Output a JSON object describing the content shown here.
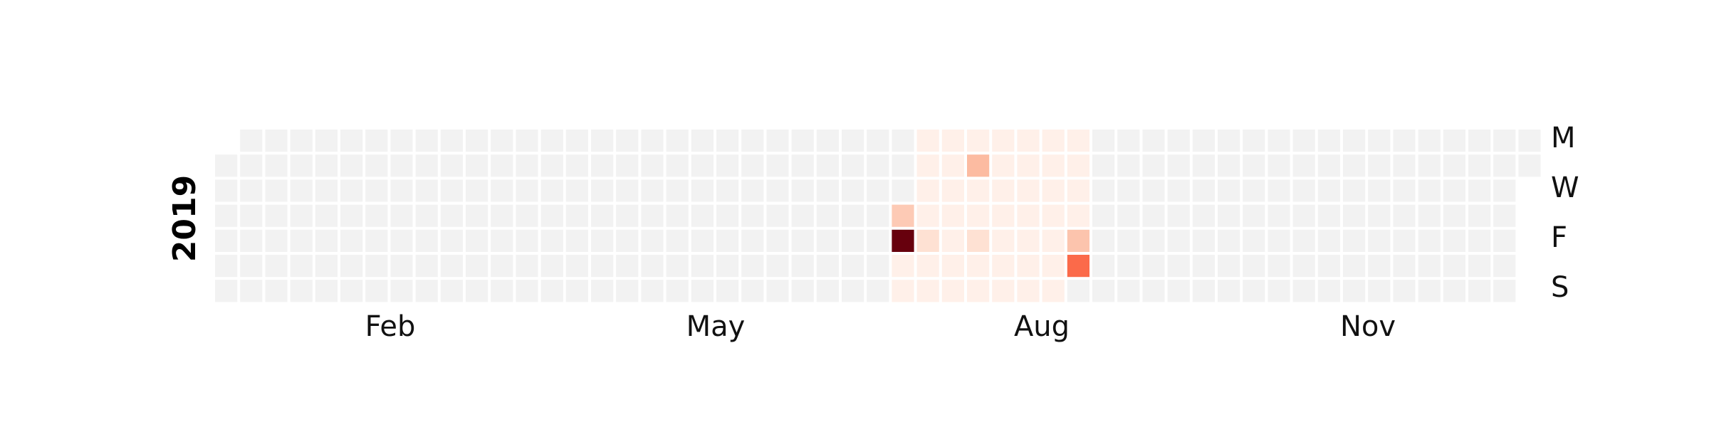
{
  "chart_data": {
    "type": "heatmap",
    "title": "",
    "year": "2019",
    "start_date": "2019-01-01",
    "end_date": "2019-12-31",
    "empty_color": "#f2f2f2",
    "colormap": [
      "#fff5f0",
      "#fee0d2",
      "#fcbba1",
      "#fc9272",
      "#fb6a4a",
      "#ef3b2c",
      "#cb181d",
      "#a50f15",
      "#67000d"
    ],
    "week_start": "Monday",
    "y_tick_labels": [
      "M",
      "W",
      "F",
      "S"
    ],
    "x_tick_labels": [
      "Feb",
      "May",
      "Aug",
      "Nov"
    ],
    "value_range": [
      0,
      100
    ],
    "observed_range": [
      "2019-07-11",
      "2019-08-31"
    ],
    "observed_baseline": 3,
    "values": [
      {
        "date": "2019-07-11",
        "value": 20
      },
      {
        "date": "2019-07-12",
        "value": 14
      },
      {
        "date": "2019-07-12",
        "value": 14
      },
      {
        "date": "2019-07-12",
        "value": 14
      },
      {
        "date": "2019-07-12",
        "value": 100
      },
      {
        "date": "2019-07-19",
        "value": 12
      },
      {
        "date": "2019-07-30",
        "value": 25
      },
      {
        "date": "2019-08-02",
        "value": 12
      },
      {
        "date": "2019-08-30",
        "value": 22
      },
      {
        "date": "2019-08-31",
        "value": 50
      }
    ]
  }
}
